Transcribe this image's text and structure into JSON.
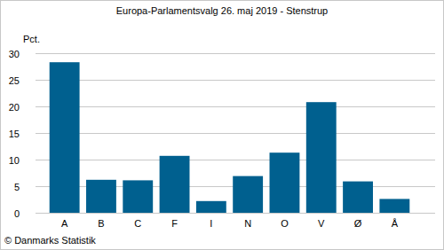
{
  "chart_data": {
    "type": "bar",
    "title": "Europa-Parlamentsvalg 26. maj 2019 - Stenstrup",
    "y_label": "Pct.",
    "annotations": [
      "© Danmarks Statistik"
    ],
    "categories": [
      "A",
      "B",
      "C",
      "F",
      "I",
      "N",
      "O",
      "V",
      "Ø",
      "Å"
    ],
    "values": [
      28.3,
      6.2,
      6.1,
      10.7,
      2.2,
      6.9,
      11.3,
      20.8,
      5.9,
      2.6
    ],
    "color": "#00608f",
    "ylim": [
      0,
      30
    ],
    "yticks": [
      0,
      5,
      10,
      15,
      20,
      25,
      30
    ],
    "grid": true
  }
}
